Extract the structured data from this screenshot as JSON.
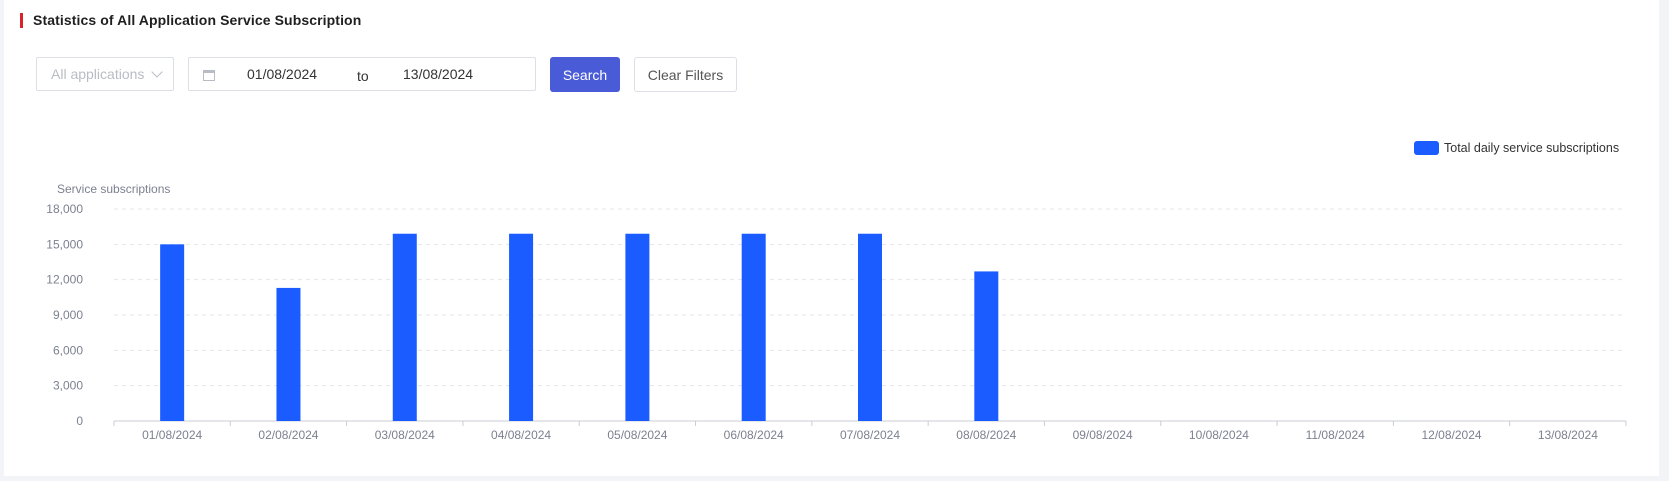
{
  "title": "Statistics of All Application Service Subscription",
  "filters": {
    "application_placeholder": "All applications",
    "date_start": "01/08/2024",
    "date_separator": "to",
    "date_end": "13/08/2024",
    "search_label": "Search",
    "clear_label": "Clear Filters"
  },
  "colors": {
    "accent": "#d9222a",
    "button": "#4a5bd8",
    "bar": "#1a5cff"
  },
  "chart_data": {
    "type": "bar",
    "categories": [
      "01/08/2024",
      "02/08/2024",
      "03/08/2024",
      "04/08/2024",
      "05/08/2024",
      "06/08/2024",
      "07/08/2024",
      "08/08/2024",
      "09/08/2024",
      "10/08/2024",
      "11/08/2024",
      "12/08/2024",
      "13/08/2024"
    ],
    "series": [
      {
        "name": "Total daily service subscriptions",
        "values": [
          15000,
          11300,
          15900,
          15900,
          15900,
          15900,
          15900,
          12700,
          0,
          0,
          0,
          0,
          0
        ]
      }
    ],
    "ylabel": "Service subscriptions",
    "xlabel": "",
    "ylim": [
      0,
      18000
    ],
    "yticks": [
      0,
      3000,
      6000,
      9000,
      12000,
      15000,
      18000
    ],
    "ytick_labels": [
      "0",
      "3,000",
      "6,000",
      "9,000",
      "12,000",
      "15,000",
      "18,000"
    ],
    "grid": true,
    "legend_position": "top-right"
  }
}
